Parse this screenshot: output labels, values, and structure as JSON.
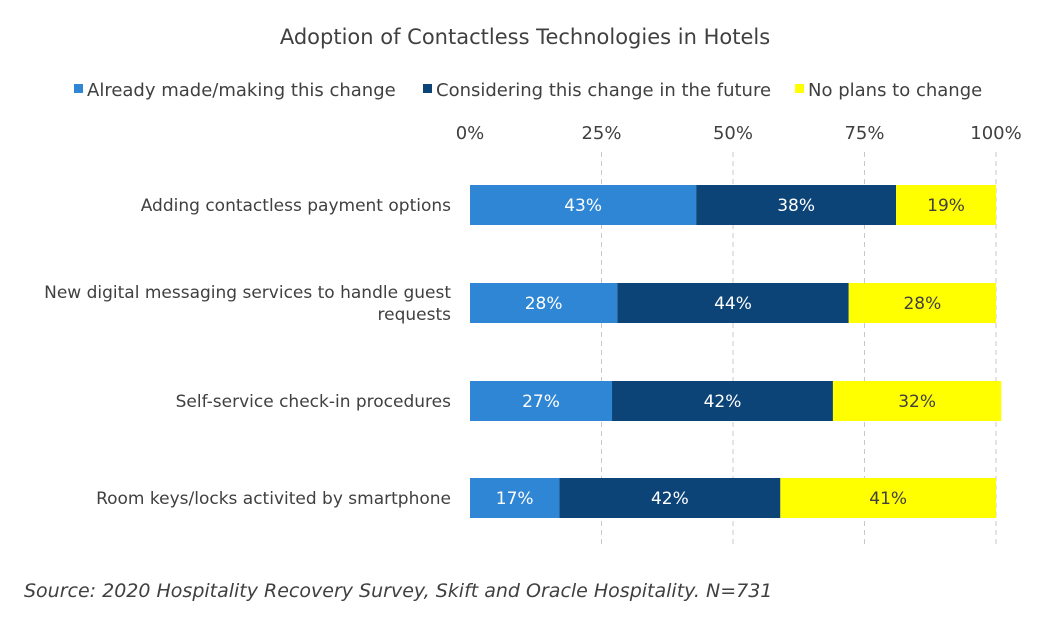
{
  "chart_data": {
    "type": "bar",
    "orientation": "horizontal",
    "stacked": true,
    "title": "Adoption of Contactless Technologies in Hotels",
    "categories": [
      "Adding contactless payment options",
      "New digital messaging services to handle guest requests",
      "Self-service check-in procedures",
      "Room keys/locks activited by smartphone"
    ],
    "category_label_lines": [
      [
        "Adding contactless payment options"
      ],
      [
        "New digital messaging services to handle guest",
        "requests"
      ],
      [
        "Self-service check-in procedures"
      ],
      [
        "Room keys/locks activited by smartphone"
      ]
    ],
    "series": [
      {
        "name": "Already made/making this change",
        "color": "#2e86d4",
        "label_color": "#ffffff",
        "values": [
          43,
          28,
          27,
          17
        ],
        "labels": [
          "43%",
          "28%",
          "27%",
          "17%"
        ]
      },
      {
        "name": "Considering this change in the future",
        "color": "#0d4478",
        "label_color": "#ffffff",
        "values": [
          38,
          44,
          42,
          42
        ],
        "labels": [
          "38%",
          "44%",
          "42%",
          "42%"
        ]
      },
      {
        "name": "No plans to change",
        "color": "#ffff00",
        "label_color": "#404040",
        "values": [
          19,
          28,
          32,
          41
        ],
        "labels": [
          "19%",
          "28%",
          "32%",
          "41%"
        ]
      }
    ],
    "xlim": [
      0,
      100
    ],
    "xticks": [
      0,
      25,
      50,
      75,
      100
    ],
    "xtick_labels": [
      "0%",
      "25%",
      "50%",
      "75%",
      "100%"
    ],
    "xaxis_position": "top",
    "grid": "vertical dashed",
    "legend_position": "top"
  },
  "source_text": "Source: 2020 Hospitality Recovery Survey, Skift and Oracle Hospitality. N=731"
}
